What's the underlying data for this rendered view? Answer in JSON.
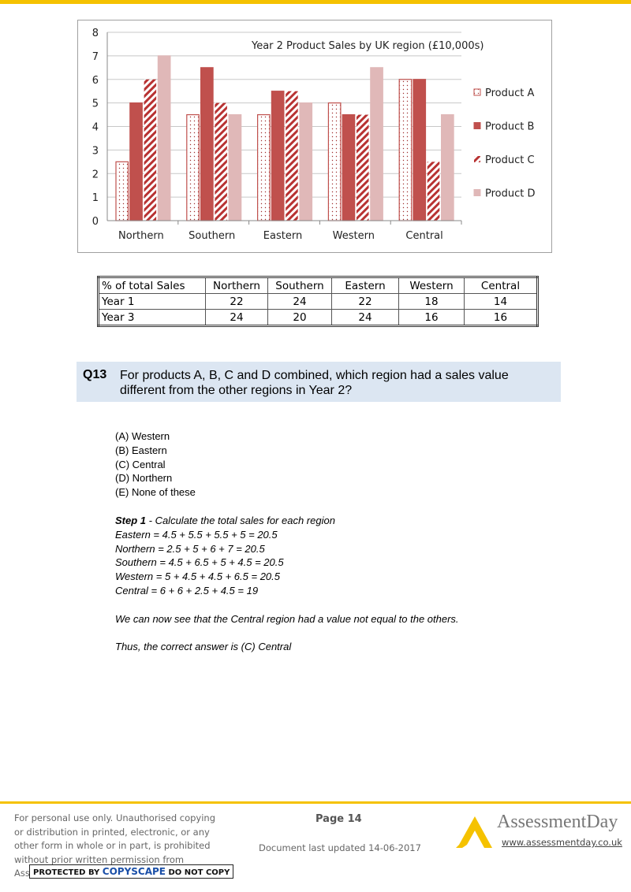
{
  "chart_data": {
    "type": "bar",
    "title": "Year 2 Product  Sales by UK region (£10,000s)",
    "categories": [
      "Northern",
      "Southern",
      "Eastern",
      "Western",
      "Central"
    ],
    "series": [
      {
        "name": "Product A",
        "values": [
          2.5,
          4.5,
          4.5,
          5,
          6
        ],
        "color": "#c0504d",
        "pattern": "dots"
      },
      {
        "name": "Product B",
        "values": [
          5,
          6.5,
          5.5,
          4.5,
          6
        ],
        "color": "#c0504d",
        "pattern": "solid"
      },
      {
        "name": "Product C",
        "values": [
          6,
          5,
          5.5,
          4.5,
          2.5
        ],
        "color": "#c0504d",
        "pattern": "diagonal-stripes"
      },
      {
        "name": "Product D",
        "values": [
          7,
          4.5,
          5,
          6.5,
          4.5
        ],
        "color": "#e0b8b8",
        "pattern": "solid"
      }
    ],
    "ylim": [
      0,
      8
    ],
    "yticks": [
      "0",
      "1",
      "2",
      "3",
      "4",
      "5",
      "6",
      "7",
      "8"
    ],
    "grid": true,
    "legend": "right"
  },
  "table": {
    "headers": [
      "% of total Sales",
      "Northern",
      "Southern",
      "Eastern",
      "Western",
      "Central"
    ],
    "rows": [
      [
        "Year 1",
        "22",
        "24",
        "22",
        "18",
        "14"
      ],
      [
        "Year 3",
        "24",
        "20",
        "24",
        "16",
        "16"
      ]
    ]
  },
  "question": {
    "number": "Q13",
    "text": "For products A, B, C and D combined, which region had a sales value different from the other regions in Year 2?"
  },
  "options": [
    "(A) Western",
    "(B) Eastern",
    "(C) Central",
    "(D) Northern",
    "(E) None of these"
  ],
  "solution": {
    "step_label": "Step 1",
    "step_text": " - Calculate the total sales for each region",
    "lines": [
      "Eastern = 4.5 + 5.5 + 5.5 + 5 = 20.5",
      "Northern = 2.5 + 5 + 6 + 7 = 20.5",
      "Southern = 4.5 + 6.5 + 5 + 4.5 = 20.5",
      "Western = 5 + 4.5 + 4.5 + 6.5 = 20.5",
      "Central = 6 + 6 + 2.5 + 4.5 = 19"
    ],
    "conclusion": "We can now see that the Central region had a value not equal to the others.",
    "answer": "Thus, the correct answer is (C) Central"
  },
  "footer": {
    "disclaimer": "For personal use only. Unauthorised copying or distribution in printed, electronic, or any other form in whole or in part, is prohibited without prior written permission from AssessmentDay.",
    "copyscape_prefix": "PROTECTED BY ",
    "copyscape_brand": "COPYSCAPE",
    "copyscape_suffix": " DO NOT COPY",
    "page": "Page 14",
    "updated": "Document last updated 14-06-2017",
    "brand": "AssessmentDay",
    "url": "www.assessmentday.co.uk",
    "brand_color": "#f5c200"
  }
}
